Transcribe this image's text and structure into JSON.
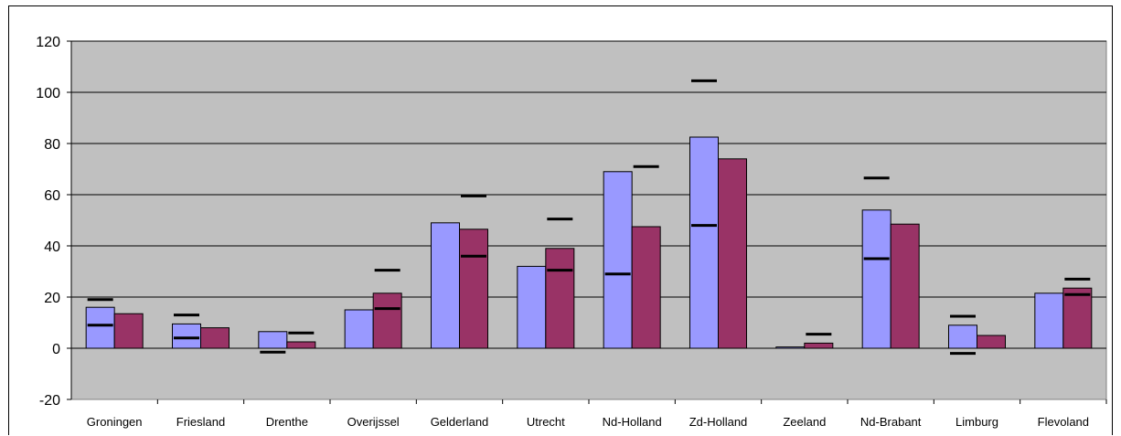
{
  "chart_data": {
    "type": "bar",
    "title": "",
    "xlabel": "",
    "ylabel": "",
    "ylim": [
      -20,
      120
    ],
    "y_ticks": [
      "120",
      "100",
      "80",
      "60",
      "40",
      "20",
      "0",
      "-20"
    ],
    "grid": true,
    "legend": "none",
    "categories": [
      "Groningen",
      "Friesland",
      "Drenthe",
      "Overijssel",
      "Gelderland",
      "Utrecht",
      "Nd-Holland",
      "Zd-Holland",
      "Zeeland",
      "Nd-Brabant",
      "Limburg",
      "Flevoland"
    ],
    "series": [
      {
        "values": [
          16,
          9.5,
          6.5,
          15,
          49,
          32,
          69,
          82.5,
          0.5,
          54,
          9,
          21.5
        ],
        "error_high": [
          19,
          13,
          null,
          null,
          null,
          null,
          null,
          104.5,
          null,
          66.5,
          12.5,
          null
        ],
        "error_low": [
          9,
          4,
          -1.5,
          null,
          null,
          null,
          29,
          48,
          null,
          35,
          -2,
          null
        ]
      },
      {
        "values": [
          13.5,
          8,
          2.5,
          21.5,
          46.5,
          39,
          47.5,
          74,
          2,
          48.5,
          5,
          23.5
        ],
        "error_high": [
          null,
          null,
          6,
          30.5,
          59.5,
          50.5,
          71,
          null,
          5.5,
          null,
          null,
          27
        ],
        "error_low": [
          null,
          null,
          null,
          15.5,
          36,
          30.5,
          null,
          null,
          null,
          null,
          null,
          21
        ]
      }
    ],
    "colors": {
      "series1": "#9999ff",
      "series2": "#993366",
      "plot_bg": "#c0c0c0",
      "grid": "#000000",
      "error_mark": "#000000"
    }
  }
}
